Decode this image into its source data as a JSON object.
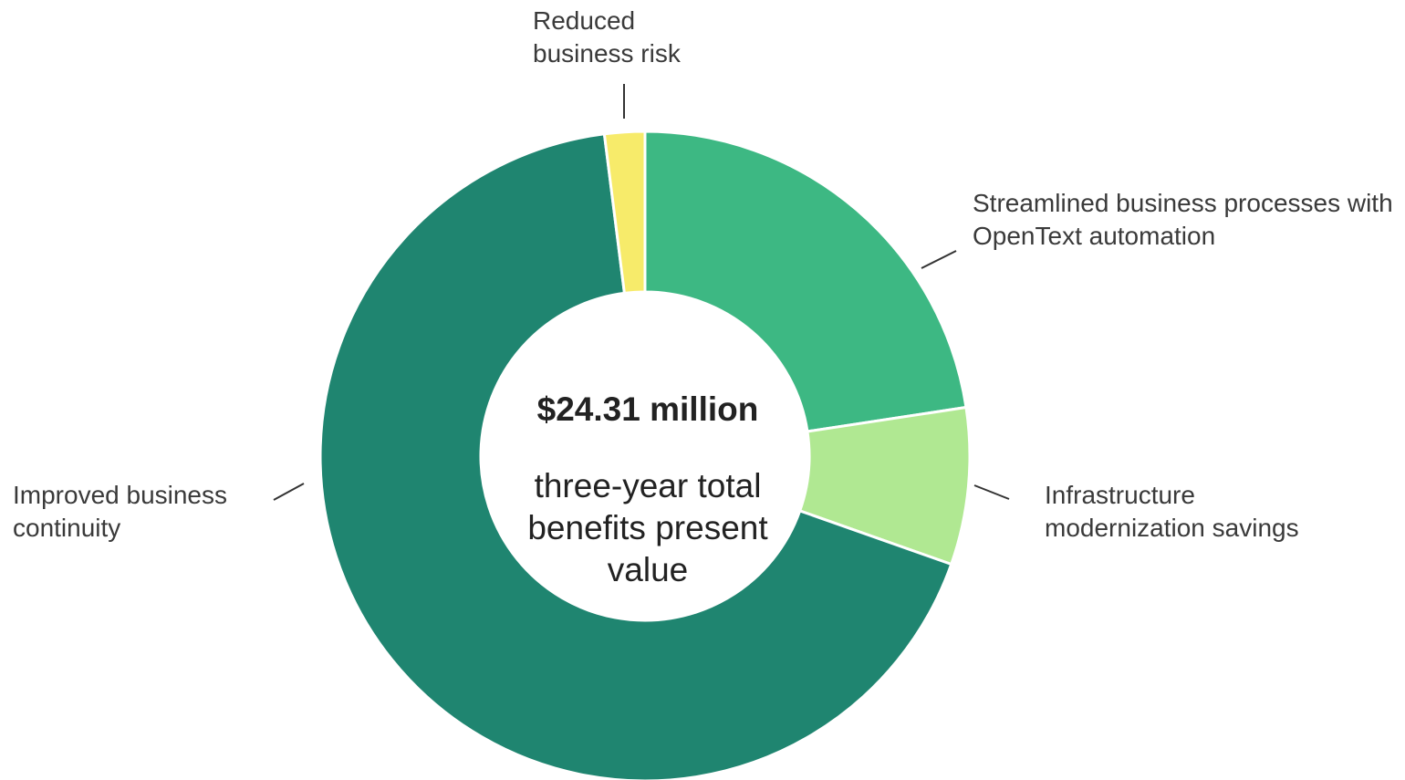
{
  "chart_data": {
    "type": "donut",
    "title": "$24.31 million",
    "subtitle": "three-year total benefits present value",
    "categories": [
      "Streamlined business processes with OpenText automation",
      "Infrastructure modernization savings",
      "Improved business continuity",
      "Reduced business risk"
    ],
    "values": [
      22.6,
      7.8,
      67.6,
      2.0
    ],
    "colors": [
      "#3db883",
      "#b0e892",
      "#1f8570",
      "#f7eb6a"
    ]
  }
}
